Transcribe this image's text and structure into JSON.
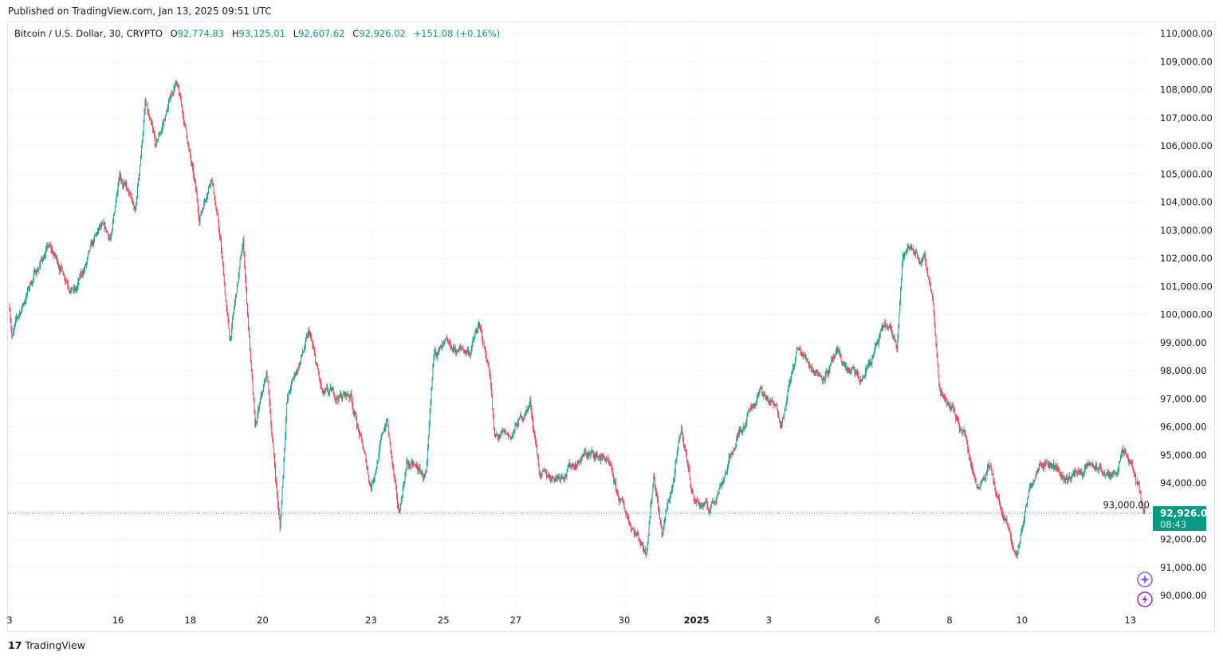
{
  "published": "Published on TradingView.com, Jan 13, 2025 09:51 UTC",
  "legend": {
    "symbol": "Bitcoin / U.S. Dollar, 30, CRYPTO",
    "open_label": "O",
    "open": "92,774.83",
    "high_label": "H",
    "high": "93,125.01",
    "low_label": "L",
    "low": "92,607.62",
    "close_label": "C",
    "close": "92,926.02",
    "change": "+151.08 (+0.16%)"
  },
  "last_price": {
    "price": "92,926.02",
    "countdown": "08:43"
  },
  "branding": "TradingView",
  "colors": {
    "up": "#089981",
    "down": "#f23645",
    "grid": "#f0f3fa",
    "assistant": "#7b61ff",
    "lightning": "#9c27b0"
  },
  "chart_data": {
    "type": "candlestick",
    "interval": "30",
    "ylim": [
      90000,
      110000
    ],
    "y_ticks": [
      "110,000.00",
      "109,000.00",
      "108,000.00",
      "107,000.00",
      "106,000.00",
      "105,000.00",
      "104,000.00",
      "103,000.00",
      "102,000.00",
      "101,000.00",
      "100,000.00",
      "99,000.00",
      "98,000.00",
      "97,000.00",
      "96,000.00",
      "95,000.00",
      "94,000.00",
      "93,000.00",
      "92,000.00",
      "91,000.00",
      "90,000.00"
    ],
    "x_ticks": [
      {
        "label": "3",
        "day": 0
      },
      {
        "label": "16",
        "day": 3
      },
      {
        "label": "18",
        "day": 5
      },
      {
        "label": "20",
        "day": 7
      },
      {
        "label": "23",
        "day": 10
      },
      {
        "label": "25",
        "day": 12
      },
      {
        "label": "27",
        "day": 14
      },
      {
        "label": "30",
        "day": 17
      },
      {
        "label": "2025",
        "day": 19,
        "bold": true
      },
      {
        "label": "3",
        "day": 21
      },
      {
        "label": "6",
        "day": 24
      },
      {
        "label": "8",
        "day": 26
      },
      {
        "label": "10",
        "day": 28
      },
      {
        "label": "13",
        "day": 31
      }
    ],
    "x_unit": "days since Dec 13, 2024",
    "price_path": [
      [
        0,
        100270
      ],
      [
        0.07,
        99270
      ],
      [
        0.62,
        101260
      ],
      [
        1.06,
        102400
      ],
      [
        1.83,
        100840
      ],
      [
        2.49,
        102960
      ],
      [
        2.82,
        102680
      ],
      [
        3.04,
        105230
      ],
      [
        3.48,
        103530
      ],
      [
        3.75,
        107500
      ],
      [
        4.04,
        105800
      ],
      [
        4.59,
        108350
      ],
      [
        4.92,
        106230
      ],
      [
        5.25,
        103390
      ],
      [
        5.58,
        105090
      ],
      [
        5.8,
        102960
      ],
      [
        6.09,
        98990
      ],
      [
        6.46,
        102540
      ],
      [
        6.79,
        95870
      ],
      [
        7.12,
        97860
      ],
      [
        7.48,
        92330
      ],
      [
        7.67,
        97010
      ],
      [
        8.29,
        99270
      ],
      [
        8.66,
        97010
      ],
      [
        9.44,
        97150
      ],
      [
        9.99,
        93890
      ],
      [
        10.43,
        96300
      ],
      [
        10.76,
        92750
      ],
      [
        10.98,
        94740
      ],
      [
        11.53,
        94170
      ],
      [
        11.75,
        98710
      ],
      [
        12.74,
        98710
      ],
      [
        12.97,
        99560
      ],
      [
        13.3,
        97860
      ],
      [
        13.41,
        95590
      ],
      [
        13.85,
        95590
      ],
      [
        14.4,
        96870
      ],
      [
        14.69,
        94170
      ],
      [
        15.17,
        94310
      ],
      [
        15.94,
        95020
      ],
      [
        16.49,
        94880
      ],
      [
        16.82,
        93460
      ],
      [
        17.6,
        91620
      ],
      [
        17.82,
        94450
      ],
      [
        18.04,
        92190
      ],
      [
        18.37,
        94170
      ],
      [
        18.59,
        95870
      ],
      [
        18.92,
        93460
      ],
      [
        19.36,
        93030
      ],
      [
        19.8,
        94450
      ],
      [
        20.46,
        96720
      ],
      [
        20.79,
        97290
      ],
      [
        21.35,
        96300
      ],
      [
        21.79,
        98710
      ],
      [
        22.45,
        97860
      ],
      [
        22.89,
        98430
      ],
      [
        23.55,
        97570
      ],
      [
        24.21,
        99560
      ],
      [
        24.54,
        98990
      ],
      [
        24.7,
        102110
      ],
      [
        24.98,
        102400
      ],
      [
        25.31,
        101830
      ],
      [
        25.53,
        100700
      ],
      [
        25.71,
        97290
      ],
      [
        25.98,
        97010
      ],
      [
        26.42,
        95730
      ],
      [
        26.75,
        93890
      ],
      [
        27.08,
        94740
      ],
      [
        27.41,
        93030
      ],
      [
        27.85,
        91330
      ],
      [
        28.18,
        93600
      ],
      [
        28.51,
        95020
      ],
      [
        28.85,
        94740
      ],
      [
        29.18,
        94170
      ],
      [
        29.95,
        94600
      ],
      [
        30.5,
        94170
      ],
      [
        30.78,
        95020
      ],
      [
        31.05,
        94450
      ],
      [
        31.4,
        92926.02
      ]
    ],
    "last_close": 92926.02
  }
}
